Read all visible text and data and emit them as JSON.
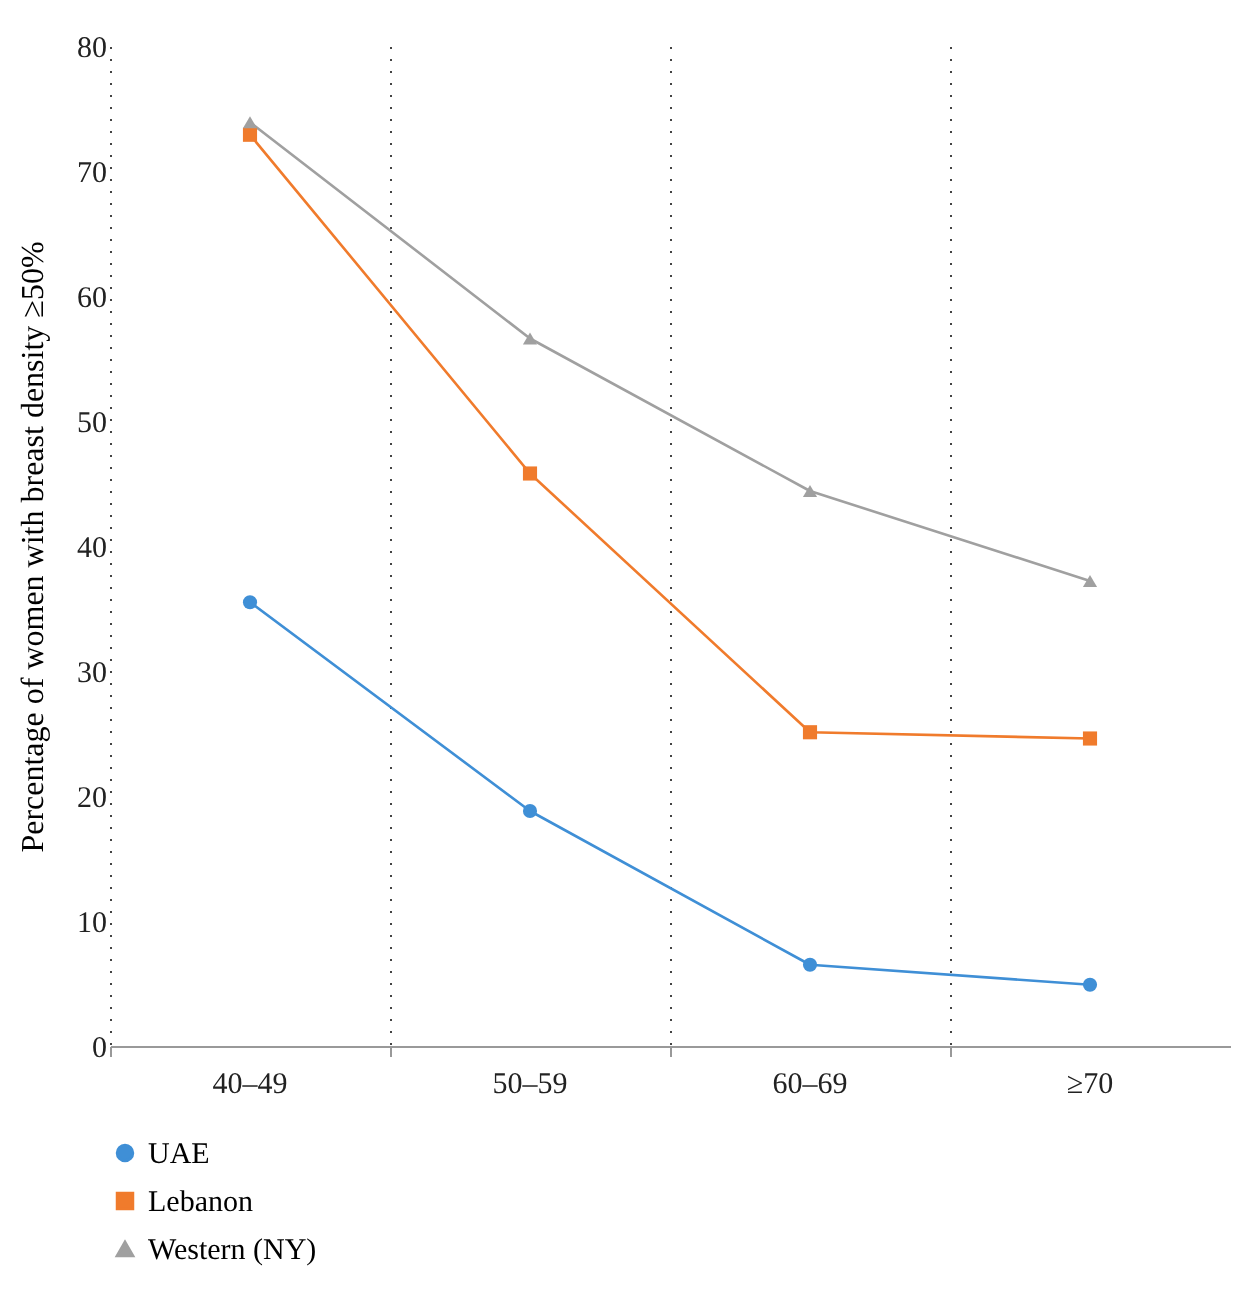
{
  "chart_data": {
    "type": "line",
    "ylabel": "Percentage of women with breast density ≥50%",
    "categories": [
      "40–49",
      "50–59",
      "60–69",
      "≥70"
    ],
    "ylim": [
      0,
      80
    ],
    "yticks": [
      0,
      10,
      20,
      30,
      40,
      50,
      60,
      70,
      80
    ],
    "grid": "x",
    "legend": "bottom left",
    "series": [
      {
        "name": "UAE",
        "color": "#3f8fd6",
        "marker": "circle",
        "values": [
          35.5,
          18.8,
          6.5,
          4.9
        ]
      },
      {
        "name": "Lebanon",
        "color": "#f07b2c",
        "marker": "square",
        "values": [
          72.9,
          45.8,
          25.1,
          24.6
        ]
      },
      {
        "name": "Western (NY)",
        "color": "#a0a0a0",
        "marker": "triangle",
        "values": [
          73.9,
          56.6,
          44.4,
          37.2
        ]
      }
    ]
  }
}
